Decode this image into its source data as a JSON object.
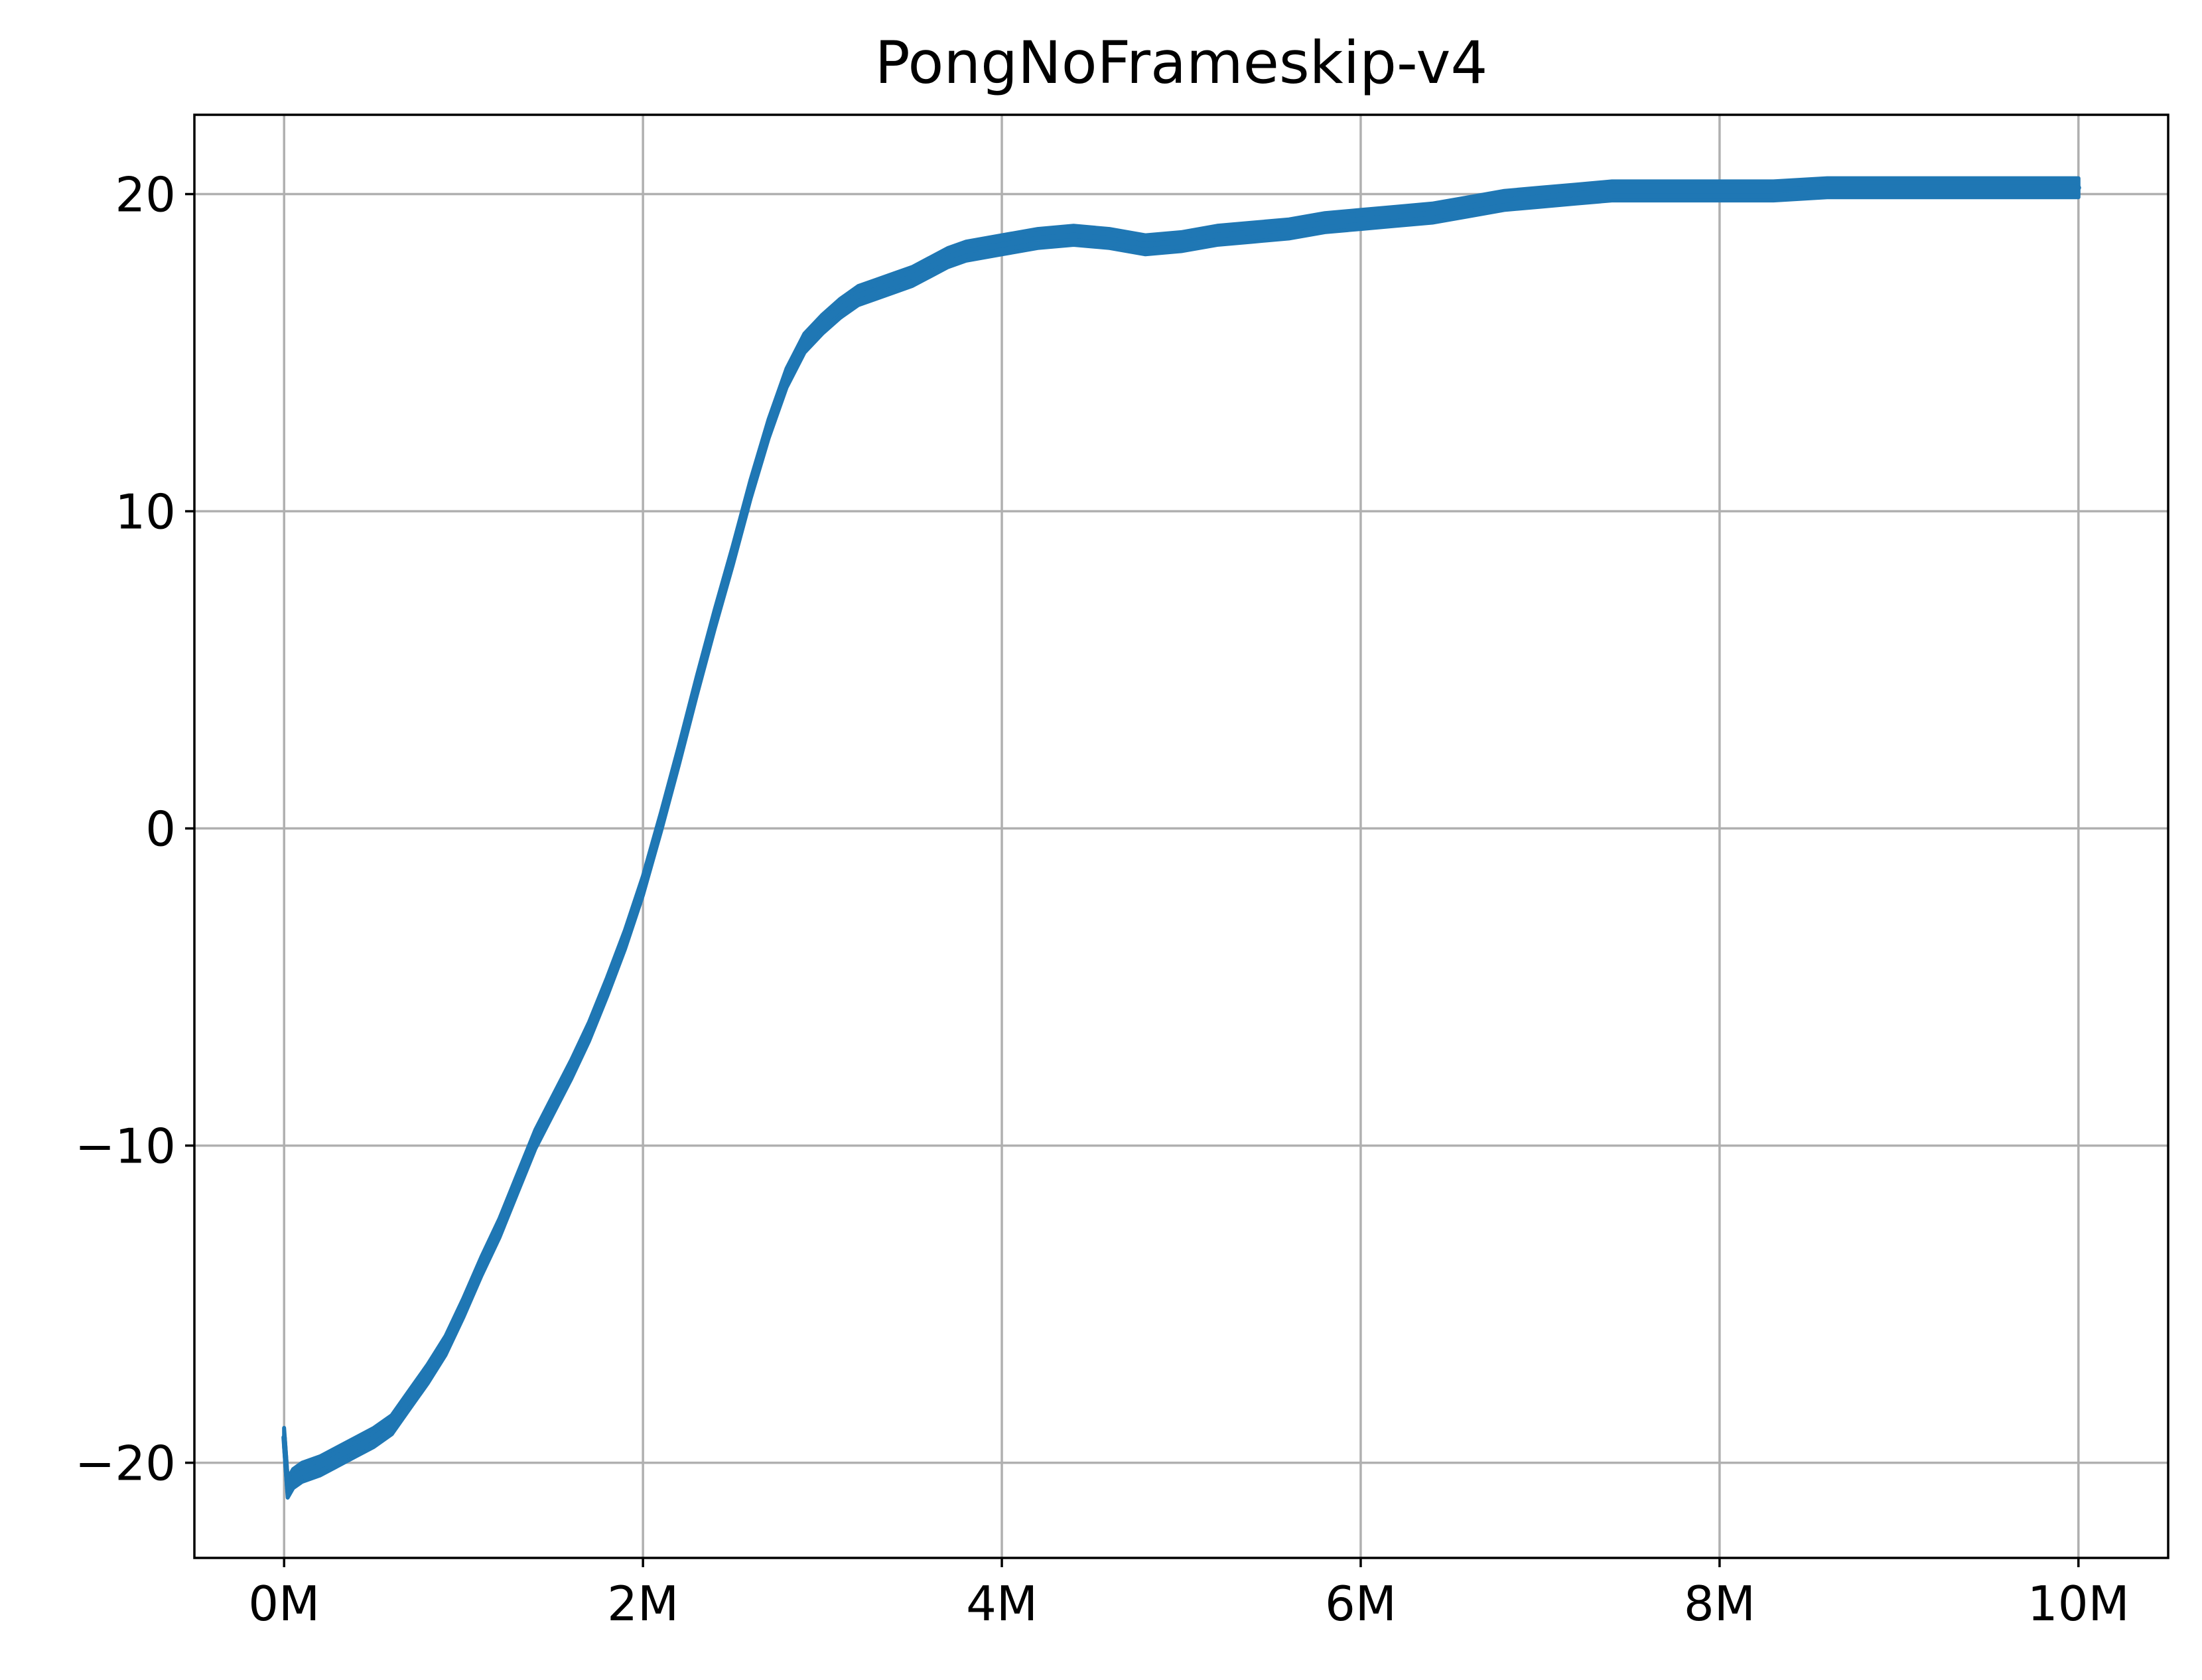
{
  "chart_data": {
    "type": "line",
    "title": "PongNoFrameskip-v4",
    "xlabel": "",
    "ylabel": "",
    "xlim": [
      -0.5,
      10.5
    ],
    "ylim": [
      -23,
      22.5
    ],
    "x_ticks": [
      {
        "value": 0,
        "label": "0M"
      },
      {
        "value": 2,
        "label": "2M"
      },
      {
        "value": 4,
        "label": "4M"
      },
      {
        "value": 6,
        "label": "6M"
      },
      {
        "value": 8,
        "label": "8M"
      },
      {
        "value": 10,
        "label": "10M"
      }
    ],
    "y_ticks": [
      {
        "value": -20,
        "label": "−20"
      },
      {
        "value": -10,
        "label": "−10"
      },
      {
        "value": 0,
        "label": "0"
      },
      {
        "value": 10,
        "label": "10"
      },
      {
        "value": 20,
        "label": "20"
      }
    ],
    "grid": true,
    "series": [
      {
        "color": "#1f77b4",
        "band": 0.6,
        "points": [
          [
            0.0,
            -19.2
          ],
          [
            0.02,
            -20.8
          ],
          [
            0.05,
            -20.5
          ],
          [
            0.1,
            -20.3
          ],
          [
            0.2,
            -20.1
          ],
          [
            0.3,
            -19.8
          ],
          [
            0.4,
            -19.5
          ],
          [
            0.5,
            -19.2
          ],
          [
            0.6,
            -18.8
          ],
          [
            0.7,
            -18.0
          ],
          [
            0.8,
            -17.2
          ],
          [
            0.9,
            -16.3
          ],
          [
            1.0,
            -15.1
          ],
          [
            1.1,
            -13.8
          ],
          [
            1.2,
            -12.6
          ],
          [
            1.3,
            -11.2
          ],
          [
            1.4,
            -9.8
          ],
          [
            1.5,
            -8.7
          ],
          [
            1.6,
            -7.6
          ],
          [
            1.7,
            -6.4
          ],
          [
            1.8,
            -5.0
          ],
          [
            1.9,
            -3.5
          ],
          [
            2.0,
            -1.8
          ],
          [
            2.1,
            0.2
          ],
          [
            2.2,
            2.3
          ],
          [
            2.3,
            4.5
          ],
          [
            2.4,
            6.6
          ],
          [
            2.5,
            8.6
          ],
          [
            2.6,
            10.7
          ],
          [
            2.7,
            12.6
          ],
          [
            2.8,
            14.2
          ],
          [
            2.9,
            15.3
          ],
          [
            3.0,
            15.9
          ],
          [
            3.1,
            16.4
          ],
          [
            3.2,
            16.8
          ],
          [
            3.3,
            17.0
          ],
          [
            3.4,
            17.2
          ],
          [
            3.5,
            17.4
          ],
          [
            3.6,
            17.7
          ],
          [
            3.7,
            18.0
          ],
          [
            3.8,
            18.2
          ],
          [
            4.0,
            18.4
          ],
          [
            4.2,
            18.6
          ],
          [
            4.4,
            18.7
          ],
          [
            4.6,
            18.6
          ],
          [
            4.8,
            18.4
          ],
          [
            5.0,
            18.5
          ],
          [
            5.2,
            18.7
          ],
          [
            5.4,
            18.8
          ],
          [
            5.6,
            18.9
          ],
          [
            5.8,
            19.1
          ],
          [
            6.0,
            19.2
          ],
          [
            6.2,
            19.3
          ],
          [
            6.4,
            19.4
          ],
          [
            6.6,
            19.6
          ],
          [
            6.8,
            19.8
          ],
          [
            7.0,
            19.9
          ],
          [
            7.2,
            20.0
          ],
          [
            7.4,
            20.1
          ],
          [
            7.6,
            20.1
          ],
          [
            7.8,
            20.1
          ],
          [
            8.0,
            20.1
          ],
          [
            8.3,
            20.1
          ],
          [
            8.6,
            20.2
          ],
          [
            9.0,
            20.2
          ],
          [
            9.3,
            20.2
          ],
          [
            9.6,
            20.2
          ],
          [
            10.0,
            20.2
          ]
        ]
      }
    ]
  }
}
